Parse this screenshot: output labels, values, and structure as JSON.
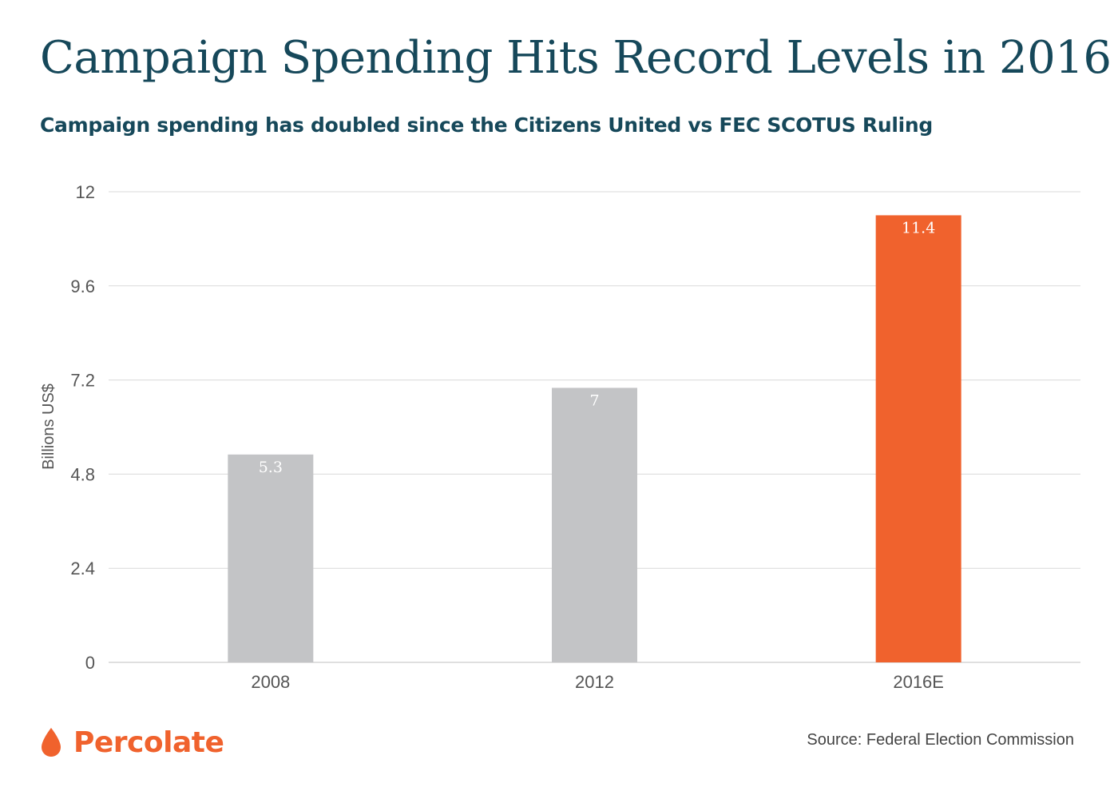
{
  "header": {
    "title": "Campaign Spending Hits Record Levels in 2016",
    "subtitle": "Campaign spending has doubled since the Citizens United vs FEC SCOTUS Ruling"
  },
  "footer": {
    "brand": "Percolate",
    "brand_icon": "drop-icon",
    "source": "Source: Federal Election Commission"
  },
  "colors": {
    "title": "#16485a",
    "bar_default": "#c3c4c6",
    "bar_highlight": "#f0622d",
    "grid": "#d9d9d9",
    "axis_text": "#555555"
  },
  "chart_data": {
    "type": "bar",
    "categories": [
      "2008",
      "2012",
      "2016E"
    ],
    "values": [
      5.3,
      7,
      11.4
    ],
    "data_labels": [
      "5.3",
      "7",
      "11.4"
    ],
    "highlight": [
      "2016E"
    ],
    "ylabel": "Billions US$",
    "xlabel": "",
    "ylim": [
      0,
      12
    ],
    "yticks": [
      0,
      2.4,
      4.8,
      7.2,
      9.6,
      12
    ],
    "ytick_labels": [
      "0",
      "2.4",
      "4.8",
      "7.2",
      "9.6",
      "12"
    ],
    "grid": true
  }
}
